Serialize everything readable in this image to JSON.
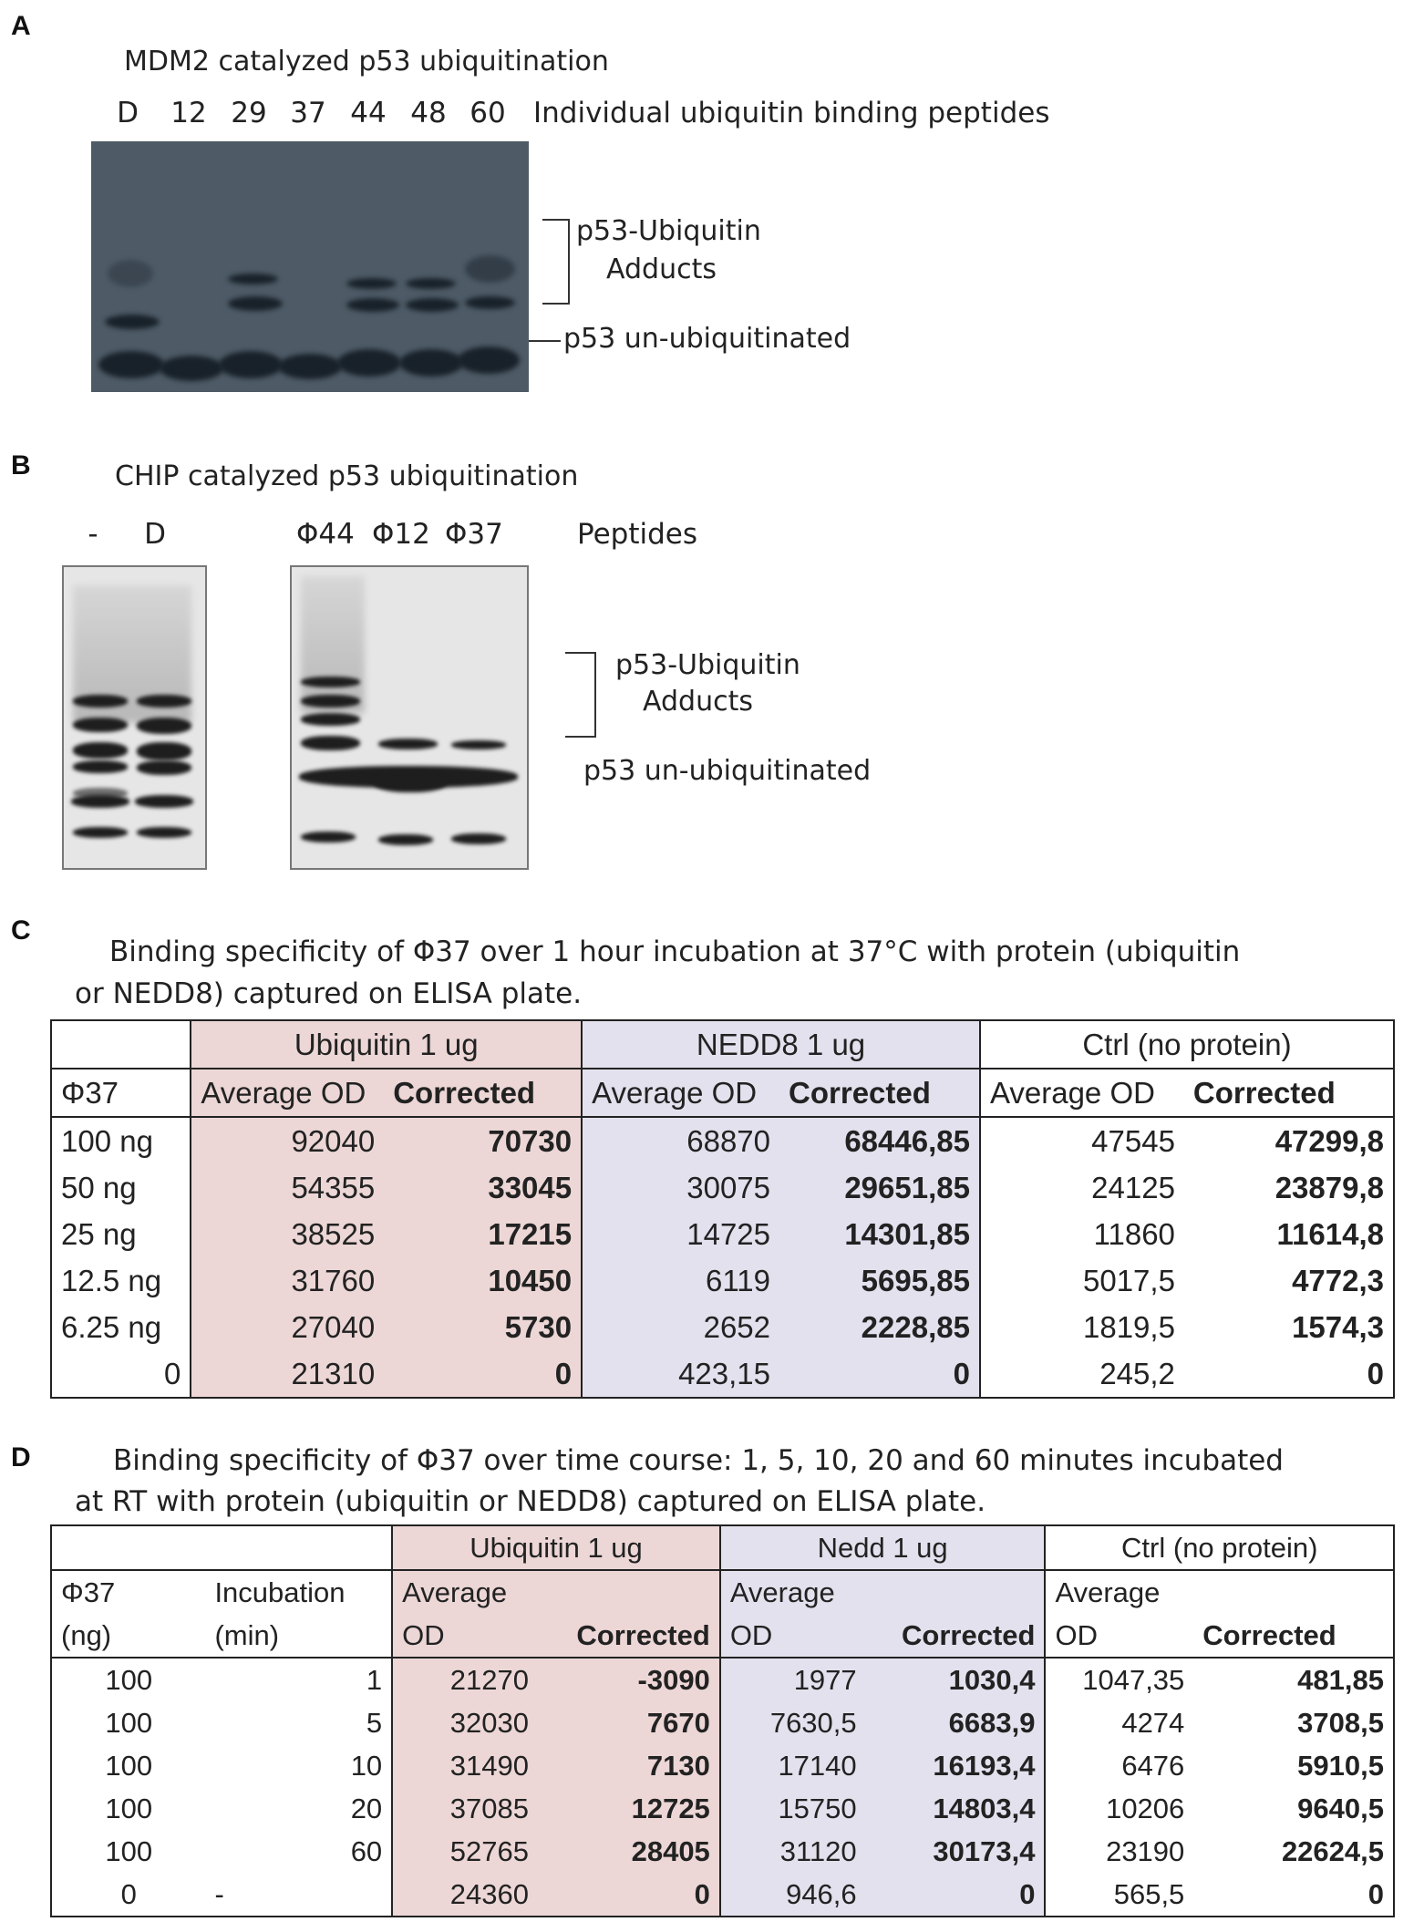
{
  "panelA": {
    "label": "A",
    "title": "MDM2 catalyzed p53 ubiquitination",
    "lanes": [
      "D",
      "12",
      "29",
      "37",
      "44",
      "48",
      "60"
    ],
    "lanes_caption": "Individual ubiquitin binding peptides",
    "adducts_line1": "p53-Ubiquitin",
    "adducts_line2": "Adducts",
    "unubiq": "p53 un-ubiquitinated"
  },
  "panelB": {
    "label": "B",
    "title": "CHIP catalyzed p53 ubiquitination",
    "lanes_left": [
      "-",
      "D"
    ],
    "lanes_right": [
      "Φ44",
      "Φ12",
      "Φ37"
    ],
    "lanes_caption": "Peptides",
    "adducts_line1": "p53-Ubiquitin",
    "adducts_line2": "Adducts",
    "unubiq": "p53 un-ubiquitinated"
  },
  "panelC": {
    "label": "C",
    "caption_line1": "Binding specificity of Φ37 over 1 hour incubation at 37°C with protein (ubiquitin",
    "caption_line2": "or NEDD8) captured on ELISA plate.",
    "groups": [
      "Ubiquitin 1 ug",
      "NEDD8 1 ug",
      "Ctrl (no protein)"
    ],
    "row_header": "Φ37",
    "sub_avg": "Average OD",
    "sub_corr": "Corrected",
    "rows": [
      [
        "100 ng",
        "92040",
        "70730",
        "68870",
        "68446,85",
        "47545",
        "47299,8"
      ],
      [
        "50 ng",
        "54355",
        "33045",
        "30075",
        "29651,85",
        "24125",
        "23879,8"
      ],
      [
        "25 ng",
        "38525",
        "17215",
        "14725",
        "14301,85",
        "11860",
        "11614,8"
      ],
      [
        "12.5 ng",
        "31760",
        "10450",
        "6119",
        "5695,85",
        "5017,5",
        "4772,3"
      ],
      [
        "6.25 ng",
        "27040",
        "5730",
        "2652",
        "2228,85",
        "1819,5",
        "1574,3"
      ],
      [
        "0",
        "21310",
        "0",
        "423,15",
        "0",
        "245,2",
        "0"
      ]
    ]
  },
  "panelD": {
    "label": "D",
    "caption_line1": "Binding specificity of Φ37 over time course: 1, 5, 10, 20 and 60 minutes incubated",
    "caption_line2": "at RT with protein (ubiquitin or NEDD8) captured on ELISA plate.",
    "groups": [
      "Ubiquitin 1 ug",
      "Nedd 1 ug",
      "Ctrl (no protein)"
    ],
    "h_phi": "Φ37",
    "h_ng": "(ng)",
    "h_inc": "Incubation",
    "h_min": "(min)",
    "h_avg1": "Average",
    "h_avg2": "OD",
    "h_corr": "Corrected",
    "rows": [
      [
        "100",
        "1",
        "21270",
        "-3090",
        "1977",
        "1030,4",
        "1047,35",
        "481,85"
      ],
      [
        "100",
        "5",
        "32030",
        "7670",
        "7630,5",
        "6683,9",
        "4274",
        "3708,5"
      ],
      [
        "100",
        "10",
        "31490",
        "7130",
        "17140",
        "16193,4",
        "6476",
        "5910,5"
      ],
      [
        "100",
        "20",
        "37085",
        "12725",
        "15750",
        "14803,4",
        "10206",
        "9640,5"
      ],
      [
        "100",
        "60",
        "52765",
        "28405",
        "31120",
        "30173,4",
        "23190",
        "22624,5"
      ],
      [
        "0",
        "-",
        "24360",
        "0",
        "946,6",
        "0",
        "565,5",
        "0"
      ]
    ]
  }
}
